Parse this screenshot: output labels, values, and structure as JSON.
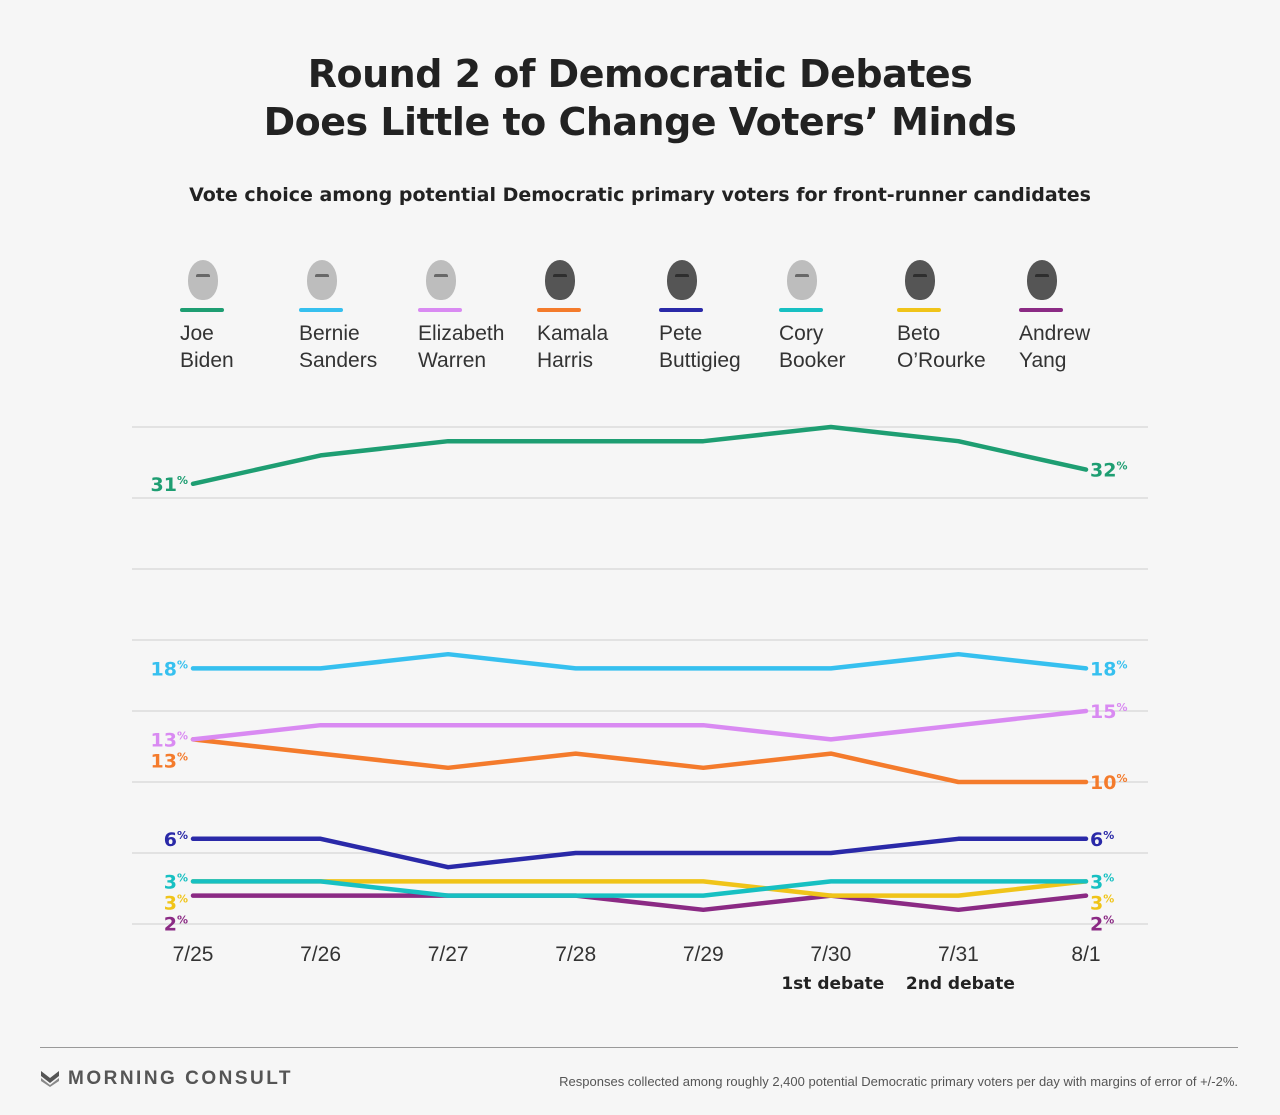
{
  "title": {
    "line1": "Round 2 of Democratic Debates",
    "line2": "Does Little to Change Voters’ Minds"
  },
  "subtitle": "Vote choice among potential Democratic primary voters for front-runner candidates",
  "candidates": [
    {
      "first": "Joe",
      "last": "Biden",
      "color": "#1e9e72",
      "icon": "biden-headshot"
    },
    {
      "first": "Bernie",
      "last": "Sanders",
      "color": "#36c0ef",
      "icon": "sanders-headshot"
    },
    {
      "first": "Elizabeth",
      "last": "Warren",
      "color": "#d98af2",
      "icon": "warren-headshot"
    },
    {
      "first": "Kamala",
      "last": "Harris",
      "color": "#f47b2c",
      "icon": "harris-headshot"
    },
    {
      "first": "Pete",
      "last": "Buttigieg",
      "color": "#2a29a8",
      "icon": "buttigieg-headshot"
    },
    {
      "first": "Cory",
      "last": "Booker",
      "color": "#17c0c2",
      "icon": "booker-headshot"
    },
    {
      "first": "Beto",
      "last": "O’Rourke",
      "color": "#f0c419",
      "icon": "orourke-headshot"
    },
    {
      "first": "Andrew",
      "last": "Yang",
      "color": "#8b2a84",
      "icon": "yang-headshot"
    }
  ],
  "chart_data": {
    "type": "line",
    "x": [
      "7/25",
      "7/26",
      "7/27",
      "7/28",
      "7/29",
      "7/30",
      "7/31",
      "8/1"
    ],
    "annotations": [
      {
        "x": "7/30",
        "text": "1st debate"
      },
      {
        "x": "7/31",
        "text": "2nd debate"
      }
    ],
    "ylim": [
      0,
      35
    ],
    "grid": true,
    "value_suffix": "%",
    "series": [
      {
        "name": "Joe Biden",
        "color": "#1e9e72",
        "values": [
          31,
          33,
          34,
          34,
          34,
          35,
          34,
          32
        ],
        "start_label": "31",
        "end_label": "32"
      },
      {
        "name": "Bernie Sanders",
        "color": "#36c0ef",
        "values": [
          18,
          18,
          19,
          18,
          18,
          18,
          19,
          18
        ],
        "start_label": "18",
        "end_label": "18"
      },
      {
        "name": "Elizabeth Warren",
        "color": "#d98af2",
        "values": [
          13,
          14,
          14,
          14,
          14,
          13,
          14,
          15
        ],
        "start_label": "13",
        "end_label": "15"
      },
      {
        "name": "Kamala Harris",
        "color": "#f47b2c",
        "values": [
          13,
          12,
          11,
          12,
          11,
          12,
          10,
          10
        ],
        "start_label": "13",
        "end_label": "10"
      },
      {
        "name": "Pete Buttigieg",
        "color": "#2a29a8",
        "values": [
          6,
          6,
          4,
          5,
          5,
          5,
          6,
          6
        ],
        "start_label": "6",
        "end_label": "6"
      },
      {
        "name": "Cory Booker",
        "color": "#17c0c2",
        "values": [
          3,
          3,
          2,
          2,
          2,
          3,
          3,
          3
        ],
        "start_label": "3",
        "end_label": "3"
      },
      {
        "name": "Beto O’Rourke",
        "color": "#f0c419",
        "values": [
          3,
          3,
          3,
          3,
          3,
          2,
          2,
          3
        ],
        "start_label": "3",
        "end_label": "3"
      },
      {
        "name": "Andrew Yang",
        "color": "#8b2a84",
        "values": [
          2,
          2,
          2,
          2,
          1,
          2,
          1,
          2
        ],
        "start_label": "2",
        "end_label": "2"
      }
    ]
  },
  "footer": {
    "brand": "MORNING CONSULT",
    "brand_icon": "morning-consult-logo",
    "note": "Responses collected among roughly 2,400 potential Democratic primary voters per day with margins of error of +/-2%."
  }
}
